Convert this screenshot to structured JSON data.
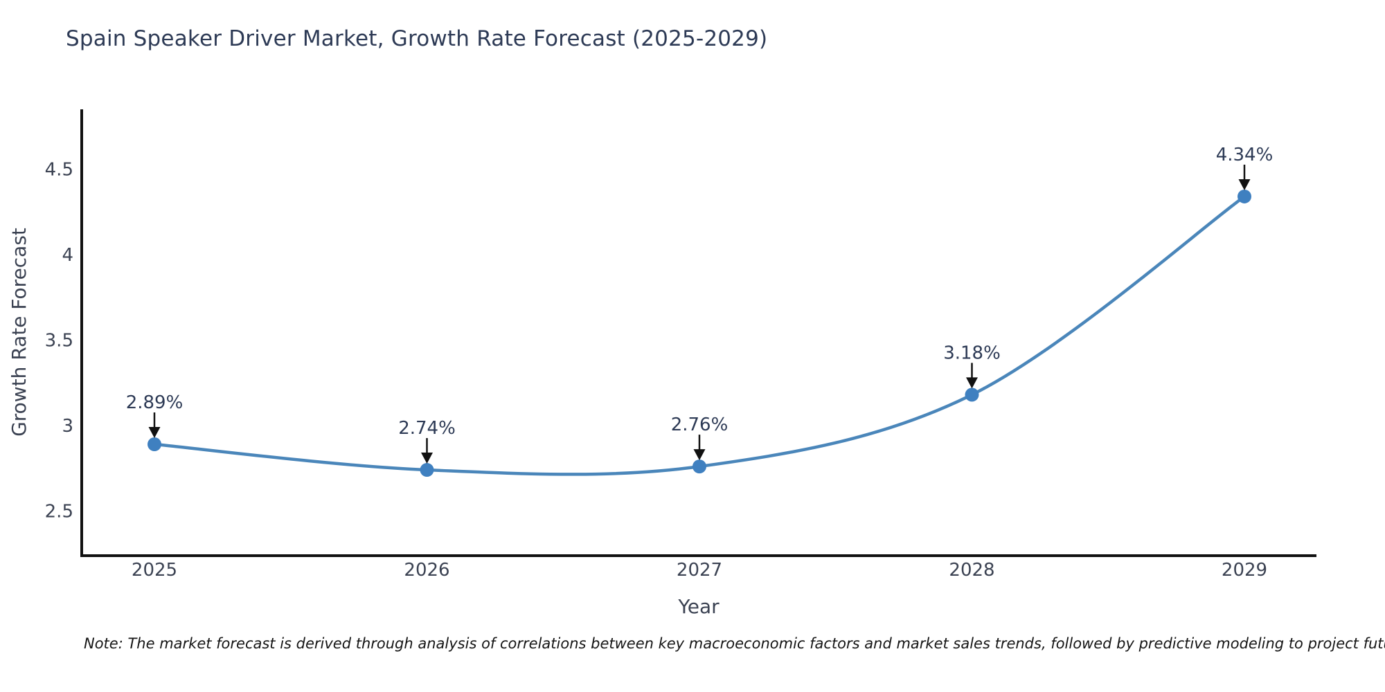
{
  "page": {
    "background": "#ffffff"
  },
  "note": "Note: The market forecast is derived through analysis of correlations between key macroeconomic factors and market sales trends, followed by predictive modeling to project future sales",
  "chart_data": {
    "type": "line",
    "title": "Spain Speaker Driver Market, Growth Rate Forecast (2025-2029)",
    "xlabel": "Year",
    "ylabel": "Growth Rate Forecast",
    "categories": [
      "2025",
      "2026",
      "2027",
      "2028",
      "2029"
    ],
    "series": [
      {
        "name": "Growth Rate Forecast",
        "values": [
          2.89,
          2.74,
          2.76,
          3.18,
          4.34
        ]
      }
    ],
    "point_labels": [
      "2.89%",
      "2.74%",
      "2.76%",
      "3.18%",
      "4.34%"
    ],
    "yticks": [
      2.5,
      3,
      3.5,
      4,
      4.5
    ],
    "ylim": [
      2.23,
      4.85
    ],
    "grid": false,
    "legend": "none",
    "curve": "spline",
    "annotations_arrow": "down",
    "colors": {
      "line": "#4a86ba",
      "marker": "#3f80c0",
      "axis": "#111111",
      "tick_text": "#3b4252",
      "title_text": "#2d3a55",
      "annotation_text": "#2d3a55",
      "annotation_arrow": "#111111"
    }
  }
}
